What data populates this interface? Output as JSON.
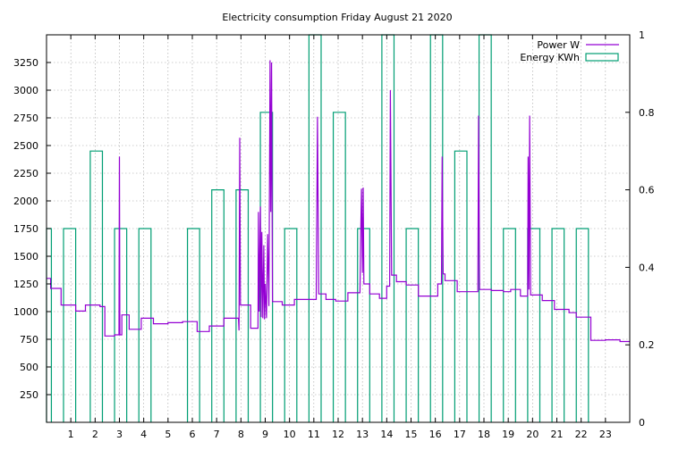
{
  "chart_data": {
    "type": "line",
    "title": "Electricity consumption Friday August 21 2020",
    "xlabel": "",
    "ylabel": "",
    "y2label": "",
    "x_range": [
      0,
      24
    ],
    "y_range": [
      0,
      3500
    ],
    "y2_range": [
      0,
      1
    ],
    "x_ticks": [
      1,
      2,
      3,
      4,
      5,
      6,
      7,
      8,
      9,
      10,
      11,
      12,
      13,
      14,
      15,
      16,
      17,
      18,
      19,
      20,
      21,
      22,
      23
    ],
    "y_ticks": [
      250,
      500,
      750,
      1000,
      1250,
      1500,
      1750,
      2000,
      2250,
      2500,
      2750,
      3000,
      3250
    ],
    "y2_ticks": [
      0,
      0.2,
      0.4,
      0.6,
      0.8,
      1
    ],
    "y2_tick_labels": [
      "0",
      "0.2",
      "0.4",
      "0.6",
      "0.8",
      "1"
    ],
    "grid": true,
    "legend_position": "top-right",
    "series": [
      {
        "name": "Power W",
        "axis": "y1",
        "style": "line",
        "color": "#9400d3",
        "points": [
          [
            0.0,
            1300
          ],
          [
            0.17,
            1300
          ],
          [
            0.17,
            1210
          ],
          [
            0.6,
            1210
          ],
          [
            0.6,
            1060
          ],
          [
            1.2,
            1060
          ],
          [
            1.2,
            1005
          ],
          [
            1.6,
            1005
          ],
          [
            1.6,
            1060
          ],
          [
            2.2,
            1060
          ],
          [
            2.2,
            1045
          ],
          [
            2.4,
            1045
          ],
          [
            2.4,
            780
          ],
          [
            2.8,
            780
          ],
          [
            2.8,
            790
          ],
          [
            2.98,
            790
          ],
          [
            3.0,
            2400
          ],
          [
            3.02,
            790
          ],
          [
            3.1,
            790
          ],
          [
            3.1,
            970
          ],
          [
            3.4,
            970
          ],
          [
            3.4,
            840
          ],
          [
            3.9,
            840
          ],
          [
            3.9,
            940
          ],
          [
            4.4,
            940
          ],
          [
            4.4,
            890
          ],
          [
            5.0,
            890
          ],
          [
            5.0,
            900
          ],
          [
            5.6,
            900
          ],
          [
            5.6,
            910
          ],
          [
            6.2,
            910
          ],
          [
            6.2,
            820
          ],
          [
            6.7,
            820
          ],
          [
            6.7,
            870
          ],
          [
            7.3,
            870
          ],
          [
            7.3,
            940
          ],
          [
            7.9,
            940
          ],
          [
            7.92,
            830
          ],
          [
            7.95,
            2570
          ],
          [
            7.98,
            1060
          ],
          [
            8.4,
            1060
          ],
          [
            8.4,
            850
          ],
          [
            8.7,
            850
          ],
          [
            8.72,
            1900
          ],
          [
            8.75,
            1000
          ],
          [
            8.8,
            1950
          ],
          [
            8.83,
            950
          ],
          [
            8.86,
            1720
          ],
          [
            8.9,
            940
          ],
          [
            8.94,
            1600
          ],
          [
            8.97,
            930
          ],
          [
            9.0,
            1250
          ],
          [
            9.05,
            940
          ],
          [
            9.1,
            1700
          ],
          [
            9.15,
            1050
          ],
          [
            9.2,
            3270
          ],
          [
            9.23,
            1900
          ],
          [
            9.26,
            3250
          ],
          [
            9.3,
            1090
          ],
          [
            9.7,
            1090
          ],
          [
            9.7,
            1060
          ],
          [
            10.2,
            1060
          ],
          [
            10.2,
            1110
          ],
          [
            11.1,
            1110
          ],
          [
            11.15,
            2760
          ],
          [
            11.2,
            1160
          ],
          [
            11.5,
            1160
          ],
          [
            11.5,
            1110
          ],
          [
            11.9,
            1110
          ],
          [
            11.9,
            1095
          ],
          [
            12.4,
            1095
          ],
          [
            12.4,
            1170
          ],
          [
            12.9,
            1170
          ],
          [
            12.93,
            1730
          ],
          [
            12.96,
            2110
          ],
          [
            13.0,
            1350
          ],
          [
            13.03,
            2120
          ],
          [
            13.06,
            1250
          ],
          [
            13.3,
            1250
          ],
          [
            13.3,
            1160
          ],
          [
            13.7,
            1160
          ],
          [
            13.7,
            1120
          ],
          [
            14.0,
            1120
          ],
          [
            14.0,
            1230
          ],
          [
            14.12,
            1230
          ],
          [
            14.15,
            3000
          ],
          [
            14.2,
            1330
          ],
          [
            14.4,
            1330
          ],
          [
            14.4,
            1270
          ],
          [
            14.8,
            1270
          ],
          [
            14.8,
            1240
          ],
          [
            15.3,
            1240
          ],
          [
            15.3,
            1140
          ],
          [
            16.1,
            1140
          ],
          [
            16.1,
            1250
          ],
          [
            16.25,
            1250
          ],
          [
            16.28,
            2400
          ],
          [
            16.32,
            1340
          ],
          [
            16.4,
            1340
          ],
          [
            16.4,
            1280
          ],
          [
            16.9,
            1280
          ],
          [
            16.9,
            1180
          ],
          [
            17.75,
            1180
          ],
          [
            17.78,
            2770
          ],
          [
            17.82,
            1200
          ],
          [
            18.3,
            1200
          ],
          [
            18.3,
            1190
          ],
          [
            18.8,
            1190
          ],
          [
            18.8,
            1180
          ],
          [
            19.1,
            1180
          ],
          [
            19.1,
            1200
          ],
          [
            19.5,
            1200
          ],
          [
            19.5,
            1140
          ],
          [
            19.8,
            1140
          ],
          [
            19.82,
            2400
          ],
          [
            19.85,
            1200
          ],
          [
            19.88,
            2770
          ],
          [
            19.92,
            1150
          ],
          [
            20.4,
            1150
          ],
          [
            20.4,
            1100
          ],
          [
            20.9,
            1100
          ],
          [
            20.9,
            1020
          ],
          [
            21.5,
            1020
          ],
          [
            21.5,
            990
          ],
          [
            21.8,
            990
          ],
          [
            21.8,
            950
          ],
          [
            22.4,
            950
          ],
          [
            22.4,
            740
          ],
          [
            23.0,
            740
          ],
          [
            23.0,
            745
          ],
          [
            23.6,
            745
          ],
          [
            23.6,
            730
          ],
          [
            24.0,
            730
          ]
        ]
      },
      {
        "name": "Energy KWh",
        "axis": "y2",
        "style": "impulse-boxes",
        "color": "#009e73",
        "boxes": [
          [
            0.0,
            0.2,
            0.5
          ],
          [
            0.7,
            1.2,
            0.5
          ],
          [
            1.8,
            2.3,
            0.7
          ],
          [
            2.8,
            3.3,
            0.5
          ],
          [
            3.8,
            4.3,
            0.5
          ],
          [
            5.8,
            6.3,
            0.5
          ],
          [
            6.8,
            7.3,
            0.6
          ],
          [
            7.8,
            8.3,
            0.6
          ],
          [
            8.8,
            9.3,
            0.8
          ],
          [
            9.8,
            10.3,
            0.5
          ],
          [
            10.8,
            11.3,
            1.0
          ],
          [
            11.8,
            12.3,
            0.8
          ],
          [
            12.8,
            13.3,
            0.5
          ],
          [
            13.8,
            14.3,
            1.0
          ],
          [
            14.8,
            15.3,
            0.5
          ],
          [
            15.8,
            16.3,
            1.0
          ],
          [
            16.8,
            17.3,
            0.7
          ],
          [
            17.8,
            18.3,
            1.0
          ],
          [
            18.8,
            19.3,
            0.5
          ],
          [
            19.8,
            20.3,
            0.5
          ],
          [
            20.8,
            21.3,
            0.5
          ],
          [
            21.8,
            22.3,
            0.5
          ]
        ]
      }
    ]
  }
}
